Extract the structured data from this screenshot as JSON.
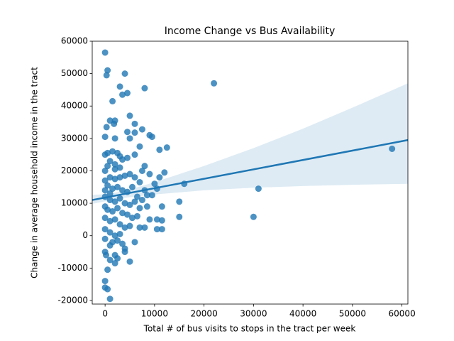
{
  "chart_data": {
    "type": "scatter",
    "title": "Income Change vs Bus Availability",
    "x_label": "Total # of bus visits to stops in the tract per week",
    "y_label": "Change in average household income in the tract",
    "color": "#1f77b4",
    "x": [
      22000,
      58000,
      31000,
      30000,
      16000,
      15000,
      15000,
      12500,
      11000,
      9000,
      9500,
      8000,
      4000,
      4500,
      3000,
      0,
      500,
      300,
      1500,
      3500,
      5000,
      1000,
      300,
      2000,
      1800,
      6000,
      7500,
      6000,
      4500,
      5000,
      2000,
      0,
      12000,
      11000,
      10500,
      11500,
      11500,
      11500,
      10500,
      10500,
      8500,
      9000,
      8000,
      7000,
      6000,
      5000,
      4000,
      4000,
      2000,
      2000,
      2500,
      1000,
      500,
      0,
      0,
      500,
      1000,
      0,
      200,
      1000,
      0,
      500,
      1500,
      2500,
      3000,
      1000,
      500,
      2000,
      3500,
      4500,
      6000,
      7000,
      8000,
      7500,
      9000,
      10000,
      9500,
      8000,
      7000,
      6000,
      5000,
      4000,
      3000,
      2000,
      1000,
      0,
      500,
      1500,
      2500,
      3500,
      4500,
      5500,
      6500,
      7500,
      8500,
      0,
      1000,
      2000,
      3000,
      4000,
      5000,
      6000,
      7000,
      0,
      500,
      1500,
      2500,
      3500,
      4500,
      5500,
      6500,
      0,
      1000,
      2000,
      3000,
      4000,
      5000,
      0,
      1000,
      2000,
      3000,
      0,
      1500,
      2500,
      3500,
      0,
      1000,
      0,
      2000,
      3000
    ],
    "values": [
      47000,
      26800,
      14500,
      5800,
      16000,
      10500,
      5800,
      27200,
      26500,
      31000,
      30500,
      45500,
      50000,
      44000,
      46000,
      56500,
      51000,
      49500,
      41500,
      43500,
      37000,
      35500,
      33500,
      35500,
      34500,
      34500,
      32800,
      31800,
      32000,
      30000,
      30000,
      30500,
      19500,
      18000,
      14500,
      9000,
      4700,
      2000,
      5000,
      2000,
      9000,
      5000,
      2500,
      2500,
      -2000,
      -8000,
      -4000,
      -5000,
      -6000,
      -8500,
      -7000,
      -7500,
      -10500,
      -14000,
      -16000,
      -16500,
      -19500,
      -5000,
      -6000,
      -3000,
      25000,
      25500,
      26000,
      25500,
      24500,
      23000,
      21500,
      22000,
      23500,
      24000,
      25000,
      27500,
      21500,
      20000,
      19000,
      16000,
      12500,
      14000,
      16500,
      18000,
      19000,
      18500,
      18000,
      17500,
      18000,
      17000,
      15500,
      14500,
      15000,
      14000,
      13500,
      15000,
      12000,
      11000,
      12500,
      12000,
      11000,
      10500,
      11500,
      10000,
      9500,
      10500,
      8500,
      9000,
      8000,
      7500,
      8500,
      7000,
      6500,
      5500,
      6000,
      5500,
      4500,
      5000,
      3500,
      2500,
      3000,
      2000,
      1000,
      0,
      500,
      -1000,
      -2000,
      -1500,
      -2500,
      14000,
      13000,
      20000,
      20500,
      21000
    ],
    "regression": {
      "x": [
        -2600,
        61200
      ],
      "values": [
        11000,
        29500
      ]
    },
    "band": {
      "x": [
        -2600,
        0,
        4000,
        10000,
        20000,
        30000,
        40000,
        50000,
        61200
      ],
      "upper": [
        12600,
        12800,
        13800,
        16500,
        21500,
        27000,
        33000,
        39500,
        47000
      ],
      "lower": [
        9800,
        10600,
        11700,
        12700,
        14000,
        14800,
        15300,
        15700,
        16000
      ]
    },
    "xlim": [
      -2600,
      61200
    ],
    "ylim": [
      -21100,
      60000
    ],
    "xticks": [
      0,
      10000,
      20000,
      30000,
      40000,
      50000,
      60000
    ],
    "yticks": [
      -20000,
      -10000,
      0,
      10000,
      20000,
      30000,
      40000,
      50000,
      60000
    ],
    "grid": false
  }
}
